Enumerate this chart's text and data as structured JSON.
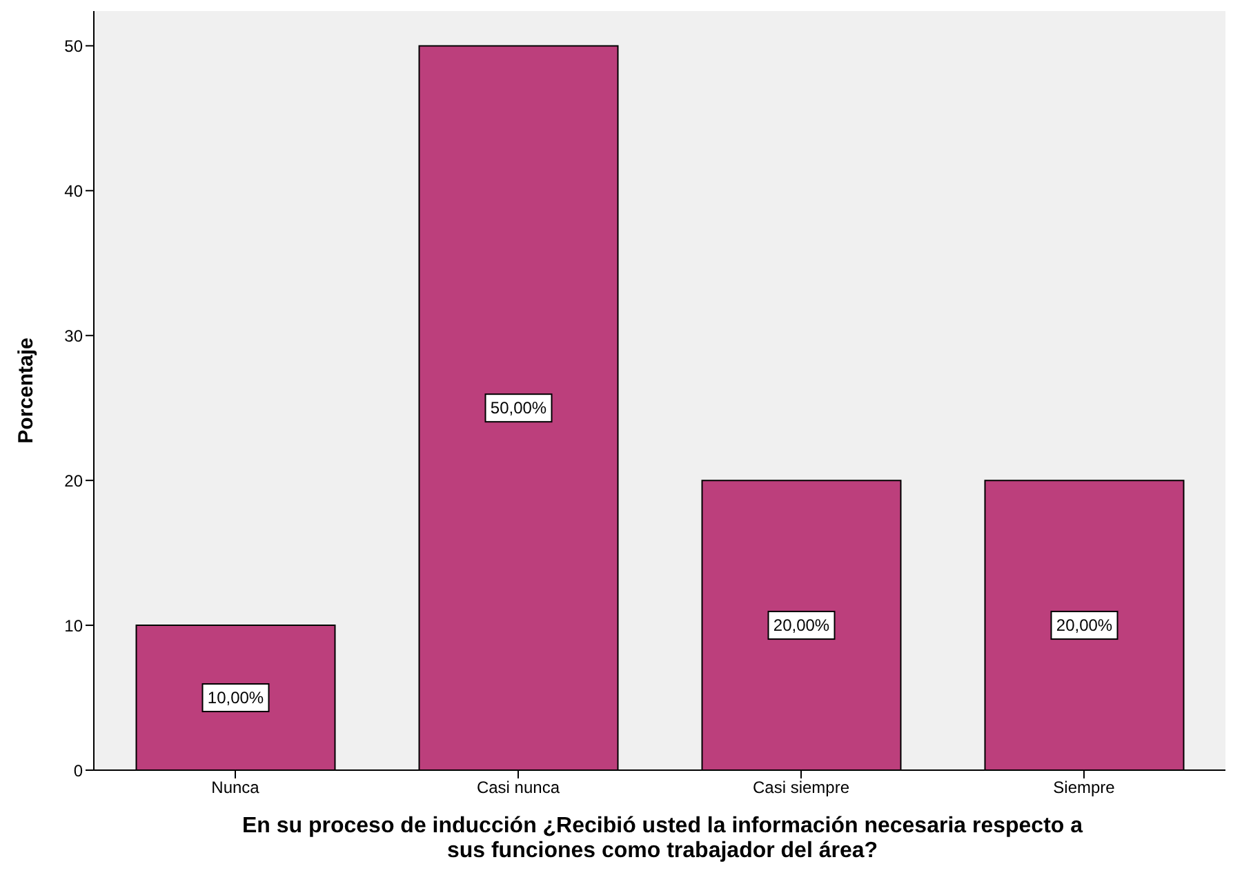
{
  "chart_data": {
    "type": "bar",
    "xlabel": "En su proceso de inducción ¿Recibió usted la información necesaria respecto a sus funciones como trabajador del área?",
    "ylabel": "Porcentaje",
    "categories": [
      "Nunca",
      "Casi nunca",
      "Casi siempre",
      "Siempre"
    ],
    "values": [
      10,
      50,
      20,
      20
    ],
    "value_labels": [
      "10,00%",
      "50,00%",
      "20,00%",
      "20,00%"
    ],
    "color": "#bc3f7c",
    "ylim": [
      0,
      52.4
    ],
    "yticks": [
      0,
      10,
      20,
      30,
      40,
      50
    ]
  }
}
